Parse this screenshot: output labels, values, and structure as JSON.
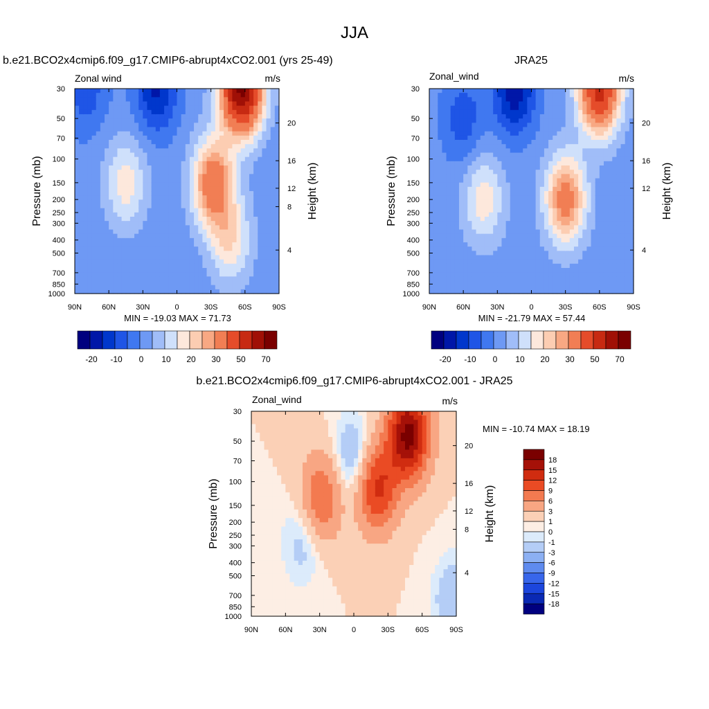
{
  "figure_title": "JJA",
  "colors": {
    "main_scale": [
      "#00007f",
      "#0017a8",
      "#0037cc",
      "#1f55e6",
      "#4078f0",
      "#6e99f4",
      "#a0bdf8",
      "#cfe0fb",
      "#fde8dc",
      "#fccdb2",
      "#f8a883",
      "#f17e54",
      "#e54c2a",
      "#c72a12",
      "#a01006",
      "#7a0000"
    ],
    "diff_scale": [
      "#7a0000",
      "#a51108",
      "#d02c10",
      "#ea4b24",
      "#f37a50",
      "#f8a683",
      "#fbd0b6",
      "#fdeee4",
      "#dcebfb",
      "#b4cdf6",
      "#8cb0f3",
      "#5f8bef",
      "#3866eb",
      "#1c46dd",
      "#0a29b4",
      "#00007f"
    ]
  },
  "charts": [
    {
      "id": "model",
      "title": "b.e21.BCO2x4cmip6.f09_g17.CMIP6-abrupt4xCO2.001 (yrs 25-49)",
      "left_label": "Zonal wind",
      "right_label": "m/s",
      "stats": "MIN = -19.03  MAX =  71.73",
      "ylabel": "Pressure (mb)",
      "y2label": "Height (km)",
      "colorbar_labels": [
        "-20",
        "-10",
        "0",
        "10",
        "20",
        "30",
        "50",
        "70"
      ]
    },
    {
      "id": "obs",
      "title": "JRA25",
      "left_label": "Zonal_wind",
      "right_label": "m/s",
      "stats": "MIN = -21.79  MAX =  57.44",
      "ylabel": "Pressure (mb)",
      "y2label": "Height (km)",
      "colorbar_labels": [
        "-20",
        "-10",
        "0",
        "10",
        "20",
        "30",
        "50",
        "70"
      ]
    },
    {
      "id": "diff",
      "title": "b.e21.BCO2x4cmip6.f09_g17.CMIP6-abrupt4xCO2.001 - JRA25",
      "left_label": "Zonal_wind",
      "right_label": "m/s",
      "stats": "MIN = -10.74  MAX =  18.19",
      "ylabel": "Pressure (mb)",
      "y2label": "Height (km)",
      "colorbar_labels": [
        "18",
        "15",
        "12",
        "9",
        "6",
        "3",
        "1",
        "0",
        "-1",
        "-3",
        "-6",
        "-9",
        "-12",
        "-15",
        "-18"
      ]
    }
  ],
  "chart_data": [
    {
      "type": "heatmap",
      "title": "b.e21.BCO2x4cmip6.f09_g17.CMIP6-abrupt4xCO2.001 (yrs 25-49)",
      "variable": "Zonal wind",
      "units": "m/s",
      "xlabel": "",
      "ylabel": "Pressure (mb)",
      "y2label": "Height (km)",
      "x_ticks": [
        "90N",
        "60N",
        "30N",
        "0",
        "30S",
        "60S",
        "90S"
      ],
      "y_ticks": [
        "30",
        "50",
        "70",
        "100",
        "150",
        "200",
        "250",
        "300",
        "400",
        "500",
        "700",
        "850",
        "1000"
      ],
      "y2_ticks": [
        "20",
        "16",
        "12",
        "8",
        "4"
      ],
      "x_range": [
        90,
        -90
      ],
      "y_range": [
        1000,
        30
      ],
      "y_scale": "log",
      "min": -19.03,
      "max": 71.73,
      "contour_levels": [
        -25,
        -20,
        -15,
        -10,
        -5,
        0,
        5,
        10,
        15,
        20,
        25,
        30,
        40,
        50,
        60,
        70,
        80
      ],
      "features": [
        {
          "value": 70,
          "lat": -57,
          "p": 30
        },
        {
          "value": 35,
          "lat": -32,
          "p": 150
        },
        {
          "value": 17,
          "lat": -47,
          "p": 400
        },
        {
          "value": 16,
          "lat": 45,
          "p": 150
        },
        {
          "value": -18,
          "lat": 18,
          "p": 30
        },
        {
          "value": -10,
          "lat": 80,
          "p": 30
        }
      ]
    },
    {
      "type": "heatmap",
      "title": "JRA25",
      "variable": "Zonal_wind",
      "units": "m/s",
      "xlabel": "",
      "ylabel": "Pressure (mb)",
      "y2label": "Height (km)",
      "x_ticks": [
        "90N",
        "60N",
        "30N",
        "0",
        "30S",
        "60S",
        "90S"
      ],
      "y_ticks": [
        "30",
        "50",
        "70",
        "100",
        "150",
        "200",
        "250",
        "300",
        "400",
        "500",
        "700",
        "850",
        "1000"
      ],
      "y2_ticks": [
        "20",
        "16",
        "12",
        "4"
      ],
      "x_range": [
        90,
        -90
      ],
      "y_range": [
        1000,
        30
      ],
      "y_scale": "log",
      "min": -21.79,
      "max": 57.44,
      "contour_levels": [
        -25,
        -20,
        -15,
        -10,
        -5,
        0,
        5,
        10,
        15,
        20,
        25,
        30,
        40,
        50,
        60,
        70,
        80
      ],
      "features": [
        {
          "value": 52,
          "lat": -60,
          "p": 30
        },
        {
          "value": 32,
          "lat": -30,
          "p": 200
        },
        {
          "value": 16,
          "lat": 42,
          "p": 200
        },
        {
          "value": -21,
          "lat": 15,
          "p": 30
        },
        {
          "value": -10,
          "lat": 60,
          "p": 50
        }
      ]
    },
    {
      "type": "heatmap",
      "title": "b.e21.BCO2x4cmip6.f09_g17.CMIP6-abrupt4xCO2.001 - JRA25",
      "variable": "Zonal_wind",
      "units": "m/s",
      "xlabel": "",
      "ylabel": "Pressure (mb)",
      "y2label": "Height (km)",
      "x_ticks": [
        "90N",
        "60N",
        "30N",
        "0",
        "30S",
        "60S",
        "90S"
      ],
      "y_ticks": [
        "30",
        "50",
        "70",
        "100",
        "150",
        "200",
        "250",
        "300",
        "400",
        "500",
        "700",
        "850",
        "1000"
      ],
      "y2_ticks": [
        "20",
        "16",
        "12",
        "8",
        "4"
      ],
      "x_range": [
        90,
        -90
      ],
      "y_range": [
        1000,
        30
      ],
      "y_scale": "log",
      "min": -10.74,
      "max": 18.19,
      "contour_levels": [
        -18,
        -15,
        -12,
        -9,
        -6,
        -3,
        -1,
        0,
        1,
        3,
        6,
        9,
        12,
        15,
        18
      ],
      "features": [
        {
          "value": 18,
          "lat": -48,
          "p": 45
        },
        {
          "value": 12,
          "lat": -20,
          "p": 110
        },
        {
          "value": 8,
          "lat": 28,
          "p": 130
        },
        {
          "value": -5,
          "lat": 0,
          "p": 70
        },
        {
          "value": -3,
          "lat": 45,
          "p": 280
        },
        {
          "value": -4,
          "lat": -88,
          "p": 760
        }
      ]
    }
  ]
}
